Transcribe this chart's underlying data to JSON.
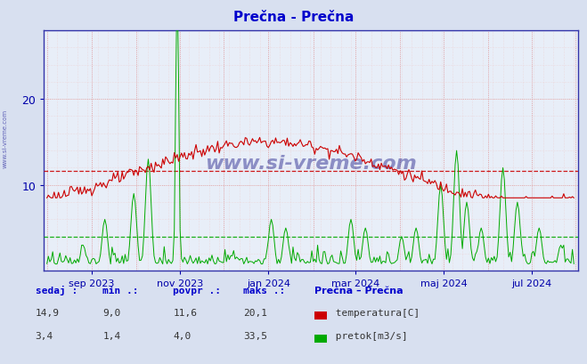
{
  "title": "Prečna - Prečna",
  "title_color": "#0000cc",
  "bg_color": "#d8e0f0",
  "plot_bg_color": "#e8eef8",
  "grid_color": "#dd9999",
  "grid_dot_color": "#ffbbbb",
  "temp_color": "#cc0000",
  "flow_color": "#00aa00",
  "avg_line_temp": 11.6,
  "avg_line_flow": 4.0,
  "ylim_max": 28,
  "yticks": [
    10,
    20
  ],
  "watermark": "www.si-vreme.com",
  "xlabel_color": "#0000aa",
  "legend_title": "Prečna – Prečna",
  "legend_title_color": "#0000cc",
  "table_label_color": "#0000cc",
  "table_labels": [
    "sedaj :",
    "min .:",
    "povpr .:",
    "maks .:"
  ],
  "temp_row": [
    "14,9",
    "9,0",
    "11,6",
    "20,1"
  ],
  "flow_row": [
    "3,4",
    "1,4",
    "4,0",
    "33,5"
  ],
  "xtick_labels": [
    "sep 2023",
    "nov 2023",
    "jan 2024",
    "mar 2024",
    "maj 2024",
    "jul 2024"
  ],
  "month_tick_positions": [
    31,
    92,
    153,
    213,
    274,
    335
  ],
  "all_month_positions": [
    0,
    31,
    62,
    92,
    122,
    153,
    184,
    213,
    244,
    274,
    305,
    335,
    365
  ],
  "side_watermark": "www.si-vreme.com"
}
